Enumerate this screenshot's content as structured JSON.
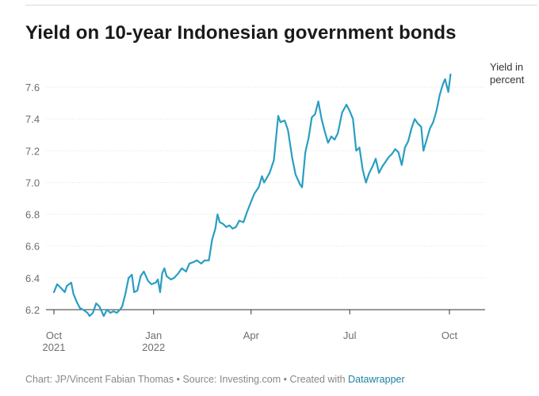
{
  "title": "Yield on 10-year Indonesian government bonds",
  "footer": {
    "prefix": "Chart: JP/Vincent Fabian Thomas • Source: Investing.com • Created with ",
    "link": "Datawrapper"
  },
  "colors": {
    "line": "#2a9ec1",
    "grid": "#e3e3e3",
    "baseline": "#333333"
  },
  "chart_data": {
    "type": "line",
    "title": "Yield on 10-year Indonesian government bonds",
    "xlabel": "",
    "ylabel": "",
    "ylim": [
      6.17,
      7.72
    ],
    "yticks": [
      6.2,
      6.4,
      6.6,
      6.8,
      7.0,
      7.2,
      7.4,
      7.6
    ],
    "xlim": [
      "2021-10-01",
      "2022-10-31"
    ],
    "xticks": [
      {
        "date": "2021-10-01",
        "label": "Oct",
        "sub": "2021"
      },
      {
        "date": "2022-01-01",
        "label": "Jan",
        "sub": "2022"
      },
      {
        "date": "2022-04-01",
        "label": "Apr",
        "sub": ""
      },
      {
        "date": "2022-07-01",
        "label": "Jul",
        "sub": ""
      },
      {
        "date": "2022-10-01",
        "label": "Oct",
        "sub": ""
      }
    ],
    "grid": true,
    "annotation": [
      "Yield in",
      "percent"
    ],
    "series": [
      {
        "name": "",
        "points": [
          [
            "2021-10-01",
            6.31
          ],
          [
            "2021-10-04",
            6.36
          ],
          [
            "2021-10-07",
            6.34
          ],
          [
            "2021-10-11",
            6.31
          ],
          [
            "2021-10-13",
            6.35
          ],
          [
            "2021-10-17",
            6.37
          ],
          [
            "2021-10-19",
            6.3
          ],
          [
            "2021-10-22",
            6.25
          ],
          [
            "2021-10-25",
            6.21
          ],
          [
            "2021-10-28",
            6.2
          ],
          [
            "2021-11-01",
            6.18
          ],
          [
            "2021-11-03",
            6.16
          ],
          [
            "2021-11-06",
            6.18
          ],
          [
            "2021-11-09",
            6.24
          ],
          [
            "2021-11-12",
            6.22
          ],
          [
            "2021-11-16",
            6.16
          ],
          [
            "2021-11-19",
            6.2
          ],
          [
            "2021-11-22",
            6.18
          ],
          [
            "2021-11-25",
            6.19
          ],
          [
            "2021-11-28",
            6.18
          ],
          [
            "2021-12-01",
            6.2
          ],
          [
            "2021-12-03",
            6.22
          ],
          [
            "2021-12-06",
            6.3
          ],
          [
            "2021-12-09",
            6.4
          ],
          [
            "2021-12-12",
            6.42
          ],
          [
            "2021-12-14",
            6.31
          ],
          [
            "2021-12-17",
            6.32
          ],
          [
            "2021-12-20",
            6.41
          ],
          [
            "2021-12-23",
            6.44
          ],
          [
            "2021-12-27",
            6.38
          ],
          [
            "2021-12-30",
            6.36
          ],
          [
            "2022-01-03",
            6.37
          ],
          [
            "2022-01-05",
            6.39
          ],
          [
            "2022-01-07",
            6.31
          ],
          [
            "2022-01-09",
            6.43
          ],
          [
            "2022-01-11",
            6.46
          ],
          [
            "2022-01-13",
            6.41
          ],
          [
            "2022-01-17",
            6.39
          ],
          [
            "2022-01-20",
            6.4
          ],
          [
            "2022-01-24",
            6.43
          ],
          [
            "2022-01-27",
            6.46
          ],
          [
            "2022-01-31",
            6.44
          ],
          [
            "2022-02-03",
            6.49
          ],
          [
            "2022-02-07",
            6.5
          ],
          [
            "2022-02-10",
            6.51
          ],
          [
            "2022-02-14",
            6.49
          ],
          [
            "2022-02-17",
            6.51
          ],
          [
            "2022-02-21",
            6.51
          ],
          [
            "2022-02-24",
            6.64
          ],
          [
            "2022-02-27",
            6.71
          ],
          [
            "2022-03-01",
            6.8
          ],
          [
            "2022-03-03",
            6.75
          ],
          [
            "2022-03-06",
            6.74
          ],
          [
            "2022-03-09",
            6.72
          ],
          [
            "2022-03-12",
            6.73
          ],
          [
            "2022-03-15",
            6.71
          ],
          [
            "2022-03-18",
            6.72
          ],
          [
            "2022-03-21",
            6.76
          ],
          [
            "2022-03-25",
            6.75
          ],
          [
            "2022-03-28",
            6.81
          ],
          [
            "2022-04-01",
            6.88
          ],
          [
            "2022-04-04",
            6.93
          ],
          [
            "2022-04-08",
            6.97
          ],
          [
            "2022-04-11",
            7.04
          ],
          [
            "2022-04-13",
            7.0
          ],
          [
            "2022-04-18",
            7.06
          ],
          [
            "2022-04-22",
            7.14
          ],
          [
            "2022-04-26",
            7.42
          ],
          [
            "2022-04-28",
            7.38
          ],
          [
            "2022-05-02",
            7.39
          ],
          [
            "2022-05-05",
            7.33
          ],
          [
            "2022-05-09",
            7.15
          ],
          [
            "2022-05-12",
            7.05
          ],
          [
            "2022-05-16",
            6.99
          ],
          [
            "2022-05-18",
            6.97
          ],
          [
            "2022-05-21",
            7.19
          ],
          [
            "2022-05-24",
            7.28
          ],
          [
            "2022-05-27",
            7.41
          ],
          [
            "2022-05-30",
            7.43
          ],
          [
            "2022-06-02",
            7.51
          ],
          [
            "2022-06-05",
            7.4
          ],
          [
            "2022-06-08",
            7.32
          ],
          [
            "2022-06-11",
            7.25
          ],
          [
            "2022-06-14",
            7.29
          ],
          [
            "2022-06-17",
            7.27
          ],
          [
            "2022-06-20",
            7.31
          ],
          [
            "2022-06-24",
            7.44
          ],
          [
            "2022-06-28",
            7.49
          ],
          [
            "2022-07-01",
            7.45
          ],
          [
            "2022-07-04",
            7.4
          ],
          [
            "2022-07-07",
            7.2
          ],
          [
            "2022-07-10",
            7.22
          ],
          [
            "2022-07-13",
            7.08
          ],
          [
            "2022-07-16",
            7.0
          ],
          [
            "2022-07-19",
            7.06
          ],
          [
            "2022-07-22",
            7.1
          ],
          [
            "2022-07-25",
            7.15
          ],
          [
            "2022-07-28",
            7.06
          ],
          [
            "2022-07-31",
            7.1
          ],
          [
            "2022-08-03",
            7.13
          ],
          [
            "2022-08-06",
            7.16
          ],
          [
            "2022-08-09",
            7.18
          ],
          [
            "2022-08-12",
            7.21
          ],
          [
            "2022-08-15",
            7.19
          ],
          [
            "2022-08-18",
            7.11
          ],
          [
            "2022-08-21",
            7.22
          ],
          [
            "2022-08-24",
            7.26
          ],
          [
            "2022-08-27",
            7.34
          ],
          [
            "2022-08-30",
            7.4
          ],
          [
            "2022-09-02",
            7.37
          ],
          [
            "2022-09-05",
            7.35
          ],
          [
            "2022-09-07",
            7.2
          ],
          [
            "2022-09-10",
            7.27
          ],
          [
            "2022-09-13",
            7.34
          ],
          [
            "2022-09-16",
            7.38
          ],
          [
            "2022-09-19",
            7.45
          ],
          [
            "2022-09-22",
            7.55
          ],
          [
            "2022-09-25",
            7.62
          ],
          [
            "2022-09-27",
            7.65
          ],
          [
            "2022-09-30",
            7.57
          ],
          [
            "2022-10-02",
            7.68
          ]
        ]
      }
    ]
  }
}
